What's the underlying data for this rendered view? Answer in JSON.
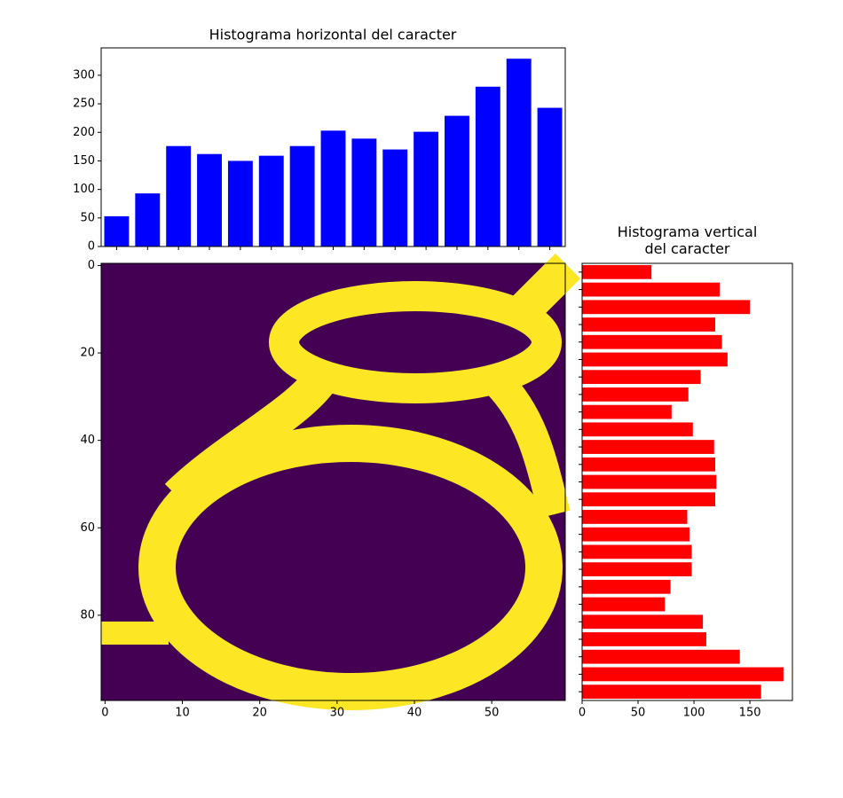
{
  "chart_data": [
    {
      "type": "bar",
      "title": "Histograma horizontal del caracter",
      "color": "#0000ff",
      "x": [
        1.5,
        5.5,
        9.5,
        13.5,
        17.5,
        21.5,
        25.5,
        29.5,
        33.5,
        37.5,
        41.5,
        45.5,
        49.5,
        53.5,
        57.5
      ],
      "values": [
        53,
        93,
        176,
        162,
        150,
        159,
        176,
        203,
        189,
        170,
        201,
        229,
        280,
        329,
        243
      ],
      "xlim": [
        -0.5,
        59.5
      ],
      "ylim": [
        0,
        348
      ],
      "yticks": [
        0,
        50,
        100,
        150,
        200,
        250,
        300
      ]
    },
    {
      "type": "image",
      "xlim": [
        -0.5,
        59.5
      ],
      "ylim": [
        99.5,
        -0.5
      ],
      "xticks": [
        0,
        10,
        20,
        30,
        40,
        50
      ],
      "yticks": [
        0,
        20,
        40,
        60,
        80
      ]
    },
    {
      "type": "barh",
      "title": "Histograma vertical\ndel caracter",
      "color": "#ff0000",
      "y": [
        1.5,
        5.5,
        9.5,
        13.5,
        17.5,
        21.5,
        25.5,
        29.5,
        33.5,
        37.5,
        41.5,
        45.5,
        49.5,
        53.5,
        57.5,
        61.5,
        65.5,
        69.5,
        73.5,
        77.5,
        81.5,
        85.5,
        89.5,
        93.5,
        97.5
      ],
      "values": [
        62,
        123,
        150,
        119,
        125,
        130,
        106,
        95,
        80,
        99,
        118,
        119,
        120,
        119,
        94,
        96,
        98,
        98,
        79,
        74,
        108,
        111,
        141,
        180,
        160
      ],
      "xlim": [
        0,
        188
      ],
      "ylim": [
        99.5,
        -0.5
      ],
      "xticks": [
        0,
        50,
        100,
        150
      ]
    }
  ]
}
